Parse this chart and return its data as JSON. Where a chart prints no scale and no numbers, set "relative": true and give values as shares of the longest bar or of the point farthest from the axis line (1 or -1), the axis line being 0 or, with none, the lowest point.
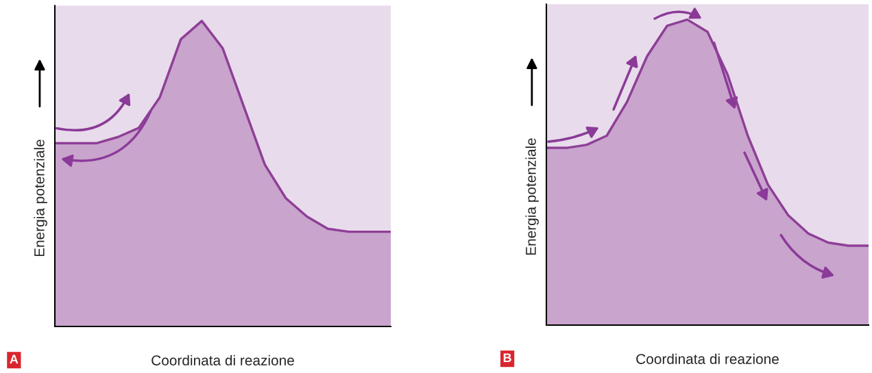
{
  "chart_data": [
    {
      "type": "area",
      "relative": true,
      "xlabel": "Coordinata di reazione",
      "ylabel": "Energia potenziale",
      "annotations": [
        "A"
      ],
      "categories": [
        null,
        null,
        null,
        null,
        null,
        null,
        null,
        null,
        null,
        null,
        null,
        null,
        null,
        null,
        null,
        null,
        null
      ],
      "series": [
        {
          "color": "#8e3f96",
          "values": [
            0.6,
            0.6,
            0.6,
            0.62,
            0.65,
            0.75,
            0.94,
            1,
            0.91,
            0.72,
            0.53,
            0.42,
            0.36,
            0.32,
            0.31,
            0.31,
            0.31
          ]
        }
      ]
    },
    {
      "type": "area",
      "relative": true,
      "xlabel": "Coordinata di reazione",
      "ylabel": "Energia potenziale",
      "annotations": [
        "B"
      ],
      "categories": [
        null,
        null,
        null,
        null,
        null,
        null,
        null,
        null,
        null,
        null,
        null,
        null,
        null,
        null,
        null,
        null,
        null
      ],
      "series": [
        {
          "color": "#8e3f96",
          "values": [
            0.58,
            0.58,
            0.59,
            0.62,
            0.73,
            0.88,
            0.98,
            1,
            0.96,
            0.82,
            0.62,
            0.46,
            0.36,
            0.3,
            0.27,
            0.26,
            0.26
          ]
        }
      ]
    }
  ]
}
